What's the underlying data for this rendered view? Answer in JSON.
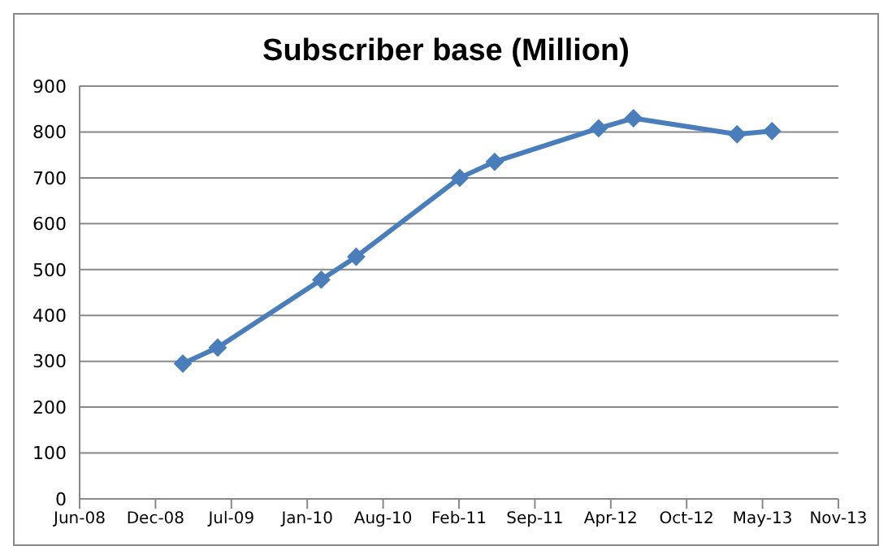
{
  "chart_data": {
    "type": "line",
    "title": "Subscriber base (Million)",
    "x": [
      "2009-02-28",
      "2009-05-31",
      "2010-02-28",
      "2010-05-31",
      "2011-02-28",
      "2011-05-31",
      "2012-02-29",
      "2012-05-31",
      "2013-02-28",
      "2013-05-31"
    ],
    "series": [
      {
        "color": "#4a7ebb",
        "values": [
          295,
          330,
          478,
          528,
          700,
          735,
          808,
          830,
          795,
          802
        ]
      }
    ],
    "xlim": [
      "2008-06-01",
      "2013-11-22"
    ],
    "xticks": [
      {
        "value": "2008-06-01",
        "label": "Jun-08"
      },
      {
        "value": "2008-12-18",
        "label": "Dec-08"
      },
      {
        "value": "2009-07-06",
        "label": "Jul-09"
      },
      {
        "value": "2010-01-22",
        "label": "Jan-10"
      },
      {
        "value": "2010-08-10",
        "label": "Aug-10"
      },
      {
        "value": "2011-02-26",
        "label": "Feb-11"
      },
      {
        "value": "2011-09-14",
        "label": "Sep-11"
      },
      {
        "value": "2012-04-01",
        "label": "Apr-12"
      },
      {
        "value": "2012-10-18",
        "label": "Oct-12"
      },
      {
        "value": "2013-05-06",
        "label": "May-13"
      },
      {
        "value": "2013-11-22",
        "label": "Nov-13"
      }
    ],
    "ylim": [
      0,
      900
    ],
    "yticks": [
      0,
      100,
      200,
      300,
      400,
      500,
      600,
      700,
      800,
      900
    ],
    "grid": "y",
    "legend": false,
    "marker": "diamond",
    "line_style": "solid"
  }
}
